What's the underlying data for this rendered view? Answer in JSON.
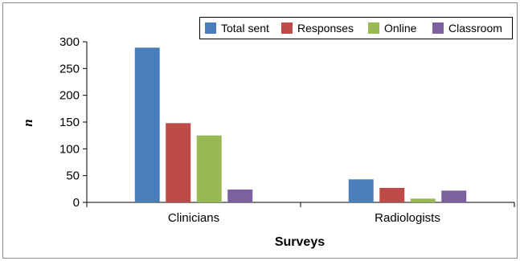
{
  "chart_data": {
    "type": "bar",
    "categories": [
      "Clinicians",
      "Radiologists"
    ],
    "series": [
      {
        "name": "Total sent",
        "color": "#4a7ebb",
        "values": [
          289,
          43
        ]
      },
      {
        "name": "Responses",
        "color": "#be4b48",
        "values": [
          148,
          27
        ]
      },
      {
        "name": "Online",
        "color": "#98b954",
        "values": [
          125,
          7
        ]
      },
      {
        "name": "Classroom",
        "color": "#7d60a0",
        "values": [
          24,
          22
        ]
      }
    ],
    "xlabel": "Surveys",
    "ylabel": "n",
    "ylim": [
      0,
      300
    ],
    "yticks": [
      0,
      50,
      100,
      150,
      200,
      250,
      300
    ],
    "grid": false,
    "legend_position": "top-right"
  }
}
